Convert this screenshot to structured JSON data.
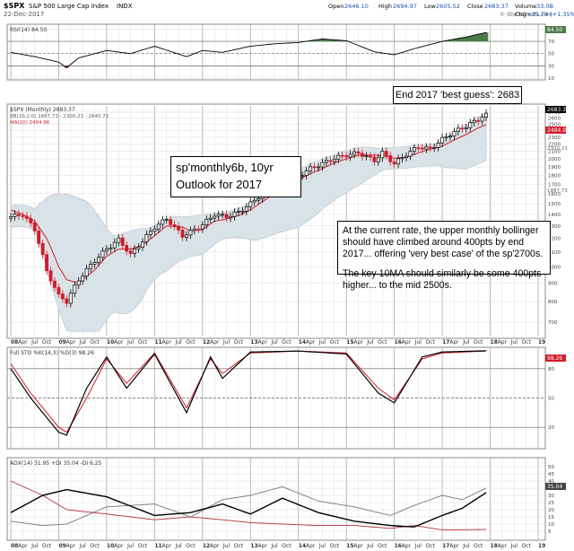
{
  "header": {
    "symbol": "$SPX",
    "name": "S&P 500 Large Cap Index",
    "exchange": "INDX",
    "date": "22-Dec-2017",
    "open_label": "Open",
    "open": "2646.10",
    "high_label": "High",
    "high": "2694.97",
    "low_label": "Low",
    "low": "2605.52",
    "close_label": "Close",
    "close": "2683.37",
    "volume_label": "Volume",
    "volume": "33.0B",
    "chg_label": "Chg",
    "chg": "+35.79 (+1.35%)",
    "watermark": "© StockCharts.com"
  },
  "panels": {
    "rsi": {
      "label": "RSI(14) 84.50",
      "ticks": [
        "90",
        "70",
        "50",
        "30",
        "10"
      ],
      "value_label": "84.50"
    },
    "price": {
      "label": "$SPX (Monthly) 2683.37",
      "bb_label": "BB(20,2.0) 1887.73 - 2300.23 - 2640.72",
      "ma_label": "MA(10) 2494.96",
      "last_label": "2683.37",
      "ma_value_label": "2494.96",
      "bb_mid_label": "2300.23",
      "bb_low_label": "1887.73",
      "ticks": [
        "2700",
        "2600",
        "2500",
        "2400",
        "2300",
        "2200",
        "2100",
        "2000",
        "1900",
        "1800",
        "1700",
        "1600",
        "1500",
        "1400",
        "1300",
        "1200",
        "1100",
        "1000",
        "900",
        "800",
        "700"
      ]
    },
    "sto": {
      "label": "Full STO %K(14,3) %D(3) 98.26",
      "ticks": [
        "80",
        "50",
        "20"
      ],
      "value_label": "98.26"
    },
    "adx": {
      "label": "ADX(14) 31.95 +DI 35.04 -DI 6.25",
      "ticks": [
        "50",
        "45",
        "40",
        "35",
        "30",
        "25",
        "20",
        "15",
        "10",
        "5"
      ],
      "value_label": "35.04"
    }
  },
  "x_axis": {
    "labels": [
      "08",
      "Apr",
      "Jul",
      "Oct",
      "09",
      "Apr",
      "Jul",
      "Oct",
      "10",
      "Apr",
      "Jul",
      "Oct",
      "11",
      "Apr",
      "Jul",
      "Oct",
      "12",
      "Apr",
      "Jul",
      "Oct",
      "13",
      "Apr",
      "Jul",
      "Oct",
      "14",
      "Apr",
      "Jul",
      "Oct",
      "15",
      "Apr",
      "Jul",
      "Oct",
      "16",
      "Apr",
      "Jul",
      "Oct",
      "17",
      "Apr",
      "Jul",
      "Oct",
      "18",
      "Apr",
      "Jul",
      "Oct",
      "19"
    ],
    "year_labels": [
      "08",
      "09",
      "10",
      "11",
      "12",
      "13",
      "14",
      "15",
      "16",
      "17",
      "18",
      "19"
    ]
  },
  "annotations": {
    "best_guess": "End 2017 'best guess': 2683",
    "title_line1": "sp'monthly6b, 10yr",
    "title_line2": "Outlook for 2017",
    "note_line1": "At the current rate, the upper monthly bollinger should have climbed around 400pts by end 2017... offering 'very best case' of the sp'2700s.",
    "note_line2": "The key 10MA should similarly be some 400pts higher... to the mid 2500s."
  },
  "colors": {
    "up": "#000000",
    "down": "#d11c2c",
    "ma": "#d11c2c",
    "band": "#d9e2e6",
    "rsi_fill": "#4a7a46",
    "grid": "#b8b8b8"
  },
  "chart_data": [
    {
      "type": "line",
      "title": "RSI(14)",
      "x": [
        "2008-01",
        "2008-07",
        "2009-01",
        "2009-03",
        "2009-06",
        "2010-01",
        "2010-07",
        "2011-01",
        "2011-09",
        "2012-01",
        "2012-06",
        "2013-01",
        "2013-07",
        "2014-01",
        "2014-07",
        "2015-01",
        "2015-08",
        "2016-01",
        "2016-06",
        "2017-01",
        "2017-07",
        "2017-12"
      ],
      "series": [
        {
          "name": "RSI(14)",
          "values": [
            52,
            45,
            36,
            27,
            43,
            55,
            50,
            62,
            45,
            55,
            52,
            62,
            66,
            68,
            74,
            71,
            53,
            48,
            58,
            70,
            77,
            84.5
          ]
        }
      ],
      "ylim": [
        10,
        95
      ]
    },
    {
      "type": "candlestick",
      "title": "$SPX (Monthly) 2683.37",
      "x": [
        "2008-01",
        "2008-04",
        "2008-07",
        "2008-10",
        "2009-01",
        "2009-03",
        "2009-06",
        "2009-10",
        "2010-01",
        "2010-04",
        "2010-07",
        "2010-10",
        "2011-01",
        "2011-04",
        "2011-08",
        "2011-10",
        "2012-01",
        "2012-04",
        "2012-07",
        "2012-10",
        "2013-01",
        "2013-04",
        "2013-07",
        "2013-10",
        "2014-01",
        "2014-04",
        "2014-07",
        "2014-10",
        "2015-01",
        "2015-04",
        "2015-08",
        "2015-10",
        "2016-01",
        "2016-04",
        "2016-07",
        "2016-10",
        "2017-01",
        "2017-04",
        "2017-07",
        "2017-10",
        "2017-12"
      ],
      "series": [
        {
          "name": "Close",
          "values": [
            1380,
            1400,
            1270,
            970,
            830,
            800,
            920,
            1040,
            1120,
            1190,
            1080,
            1180,
            1290,
            1360,
            1220,
            1250,
            1310,
            1400,
            1380,
            1420,
            1500,
            1600,
            1680,
            1750,
            1790,
            1880,
            1940,
            2010,
            2050,
            2080,
            1980,
            2080,
            1940,
            2060,
            2160,
            2130,
            2270,
            2380,
            2470,
            2575,
            2683.37
          ]
        },
        {
          "name": "MA(10)",
          "values": [
            1440,
            1400,
            1340,
            1200,
            1000,
            920,
            900,
            980,
            1070,
            1120,
            1120,
            1150,
            1220,
            1300,
            1290,
            1260,
            1270,
            1340,
            1360,
            1390,
            1440,
            1520,
            1600,
            1680,
            1750,
            1820,
            1880,
            1950,
            2000,
            2050,
            2050,
            2040,
            2010,
            2020,
            2080,
            2130,
            2170,
            2260,
            2340,
            2440,
            2494.96
          ]
        }
      ],
      "ylim": [
        650,
        2780
      ]
    },
    {
      "type": "line",
      "title": "Full STO %K(14,3) %D(3)",
      "x": [
        "2008-01",
        "2008-06",
        "2009-01",
        "2009-03",
        "2009-08",
        "2010-01",
        "2010-06",
        "2011-01",
        "2011-09",
        "2012-03",
        "2012-06",
        "2013-01",
        "2014-01",
        "2015-01",
        "2015-09",
        "2016-01",
        "2016-08",
        "2017-01",
        "2017-12"
      ],
      "series": [
        {
          "name": "%K",
          "values": [
            80,
            50,
            15,
            12,
            60,
            92,
            60,
            95,
            35,
            92,
            70,
            97,
            98,
            95,
            55,
            45,
            92,
            97,
            98.26
          ]
        },
        {
          "name": "%D",
          "values": [
            85,
            55,
            20,
            15,
            50,
            90,
            65,
            96,
            40,
            90,
            75,
            96,
            98,
            96,
            60,
            48,
            90,
            96,
            98
          ]
        }
      ],
      "ylim": [
        0,
        100
      ]
    },
    {
      "type": "line",
      "title": "ADX(14)",
      "x": [
        "2008-01",
        "2008-09",
        "2009-03",
        "2010-01",
        "2011-01",
        "2011-10",
        "2012-06",
        "2013-01",
        "2013-09",
        "2014-06",
        "2015-03",
        "2015-12",
        "2016-06",
        "2017-01",
        "2017-06",
        "2017-12"
      ],
      "series": [
        {
          "name": "ADX",
          "values": [
            18,
            30,
            34,
            29,
            16,
            18,
            24,
            17,
            28,
            18,
            12,
            9,
            8,
            16,
            21,
            31.95
          ]
        },
        {
          "name": "+DI",
          "values": [
            12,
            9,
            10,
            22,
            24,
            15,
            27,
            30,
            36,
            26,
            22,
            16,
            23,
            30,
            27,
            35.04
          ]
        },
        {
          "name": "-DI",
          "values": [
            40,
            30,
            20,
            17,
            13,
            15,
            13,
            11,
            10,
            9,
            9,
            7,
            9,
            6,
            6,
            6.25
          ]
        }
      ],
      "ylim": [
        0,
        55
      ]
    }
  ]
}
